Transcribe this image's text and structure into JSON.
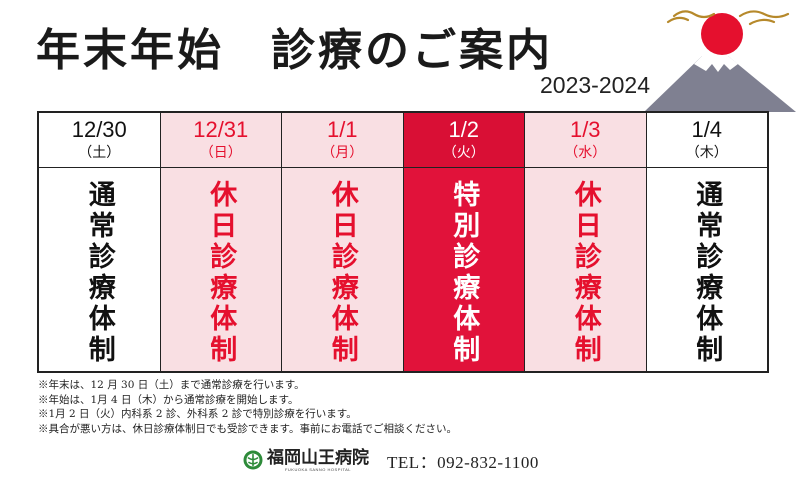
{
  "header": {
    "title": "年末年始　診療のご案内",
    "year_range": "2023-2024"
  },
  "schedule": [
    {
      "date": "12/30",
      "weekday": "（土）",
      "status": "通常診療体制",
      "type": "normal"
    },
    {
      "date": "12/31",
      "weekday": "（日）",
      "status": "休日診療体制",
      "type": "holiday"
    },
    {
      "date": "1/1",
      "weekday": "（月）",
      "status": "休日診療体制",
      "type": "holiday"
    },
    {
      "date": "1/2",
      "weekday": "（火）",
      "status": "特別診療体制",
      "type": "special"
    },
    {
      "date": "1/3",
      "weekday": "（水）",
      "status": "休日診療体制",
      "type": "holiday"
    },
    {
      "date": "1/4",
      "weekday": "（木）",
      "status": "通常診療体制",
      "type": "normal"
    }
  ],
  "notes": [
    "※年末は、12 月 30 日（土）まで通常診療を行います。",
    "※年始は、1月 4 日（木）から通常診療を開始します。",
    "※1月 2 日（火）内科系 2 診、外科系 2 診で特別診療を行います。",
    "※具合が悪い方は、休日診療体制日でも受診できます。事前にお電話でご相談ください。"
  ],
  "footer": {
    "hospital_name": "福岡山王病院",
    "hospital_name_en": "FUKUOKA SANNO HOSPITAL",
    "phone": "TEL：092-832-1100",
    "logo_icon": "hospital-logo-icon"
  },
  "colors": {
    "holiday_bg": "#f9dfe3",
    "holiday_text": "#e5102e",
    "special_bg": "#e1123a",
    "special_text": "#ffffff",
    "sun": "#e5102e",
    "mountain": "#7f8091"
  }
}
